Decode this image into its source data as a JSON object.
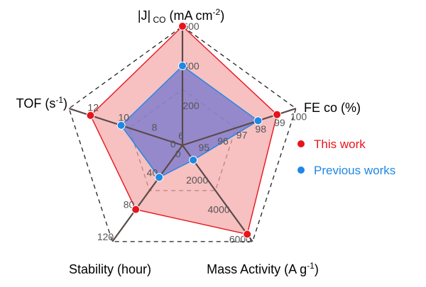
{
  "chart_data": {
    "type": "radar",
    "axes": [
      {
        "label": "|J|",
        "sub": " CO",
        "tail": " (mA cm",
        "sup": "-2",
        "end": ")",
        "ticks": [
          "200",
          "400",
          "600"
        ],
        "range": [
          0,
          600
        ]
      },
      {
        "label": "FE co (%)",
        "ticks": [
          "95",
          "96",
          "97",
          "98",
          "99",
          "100"
        ],
        "range": [
          94,
          100
        ]
      },
      {
        "label": "Mass Activity (A g",
        "sup": "-1",
        "end": ")",
        "ticks": [
          "0",
          "2000",
          "4000",
          "6000"
        ],
        "range": [
          0,
          6500
        ]
      },
      {
        "label": "Stability (hour)",
        "ticks": [
          "0",
          "40",
          "80",
          "120"
        ],
        "range": [
          0,
          120
        ]
      },
      {
        "label": "TOF (s",
        "sup": "-1",
        "end": ")",
        "ticks": [
          "6",
          "8",
          "10",
          "12"
        ],
        "range": [
          6,
          13.4
        ]
      }
    ],
    "series": [
      {
        "name": "This work",
        "values": [
          600,
          99,
          6000,
          80,
          12
        ],
        "color": "#e8141b",
        "fill": "#f4a7a9"
      },
      {
        "name": "Previous works",
        "values": [
          400,
          98,
          1000,
          40,
          10
        ],
        "color": "#1e88e5",
        "fill": "#7a7ad0"
      }
    ],
    "grid": {
      "dashed_rings": [
        "outer",
        "inner"
      ]
    }
  }
}
